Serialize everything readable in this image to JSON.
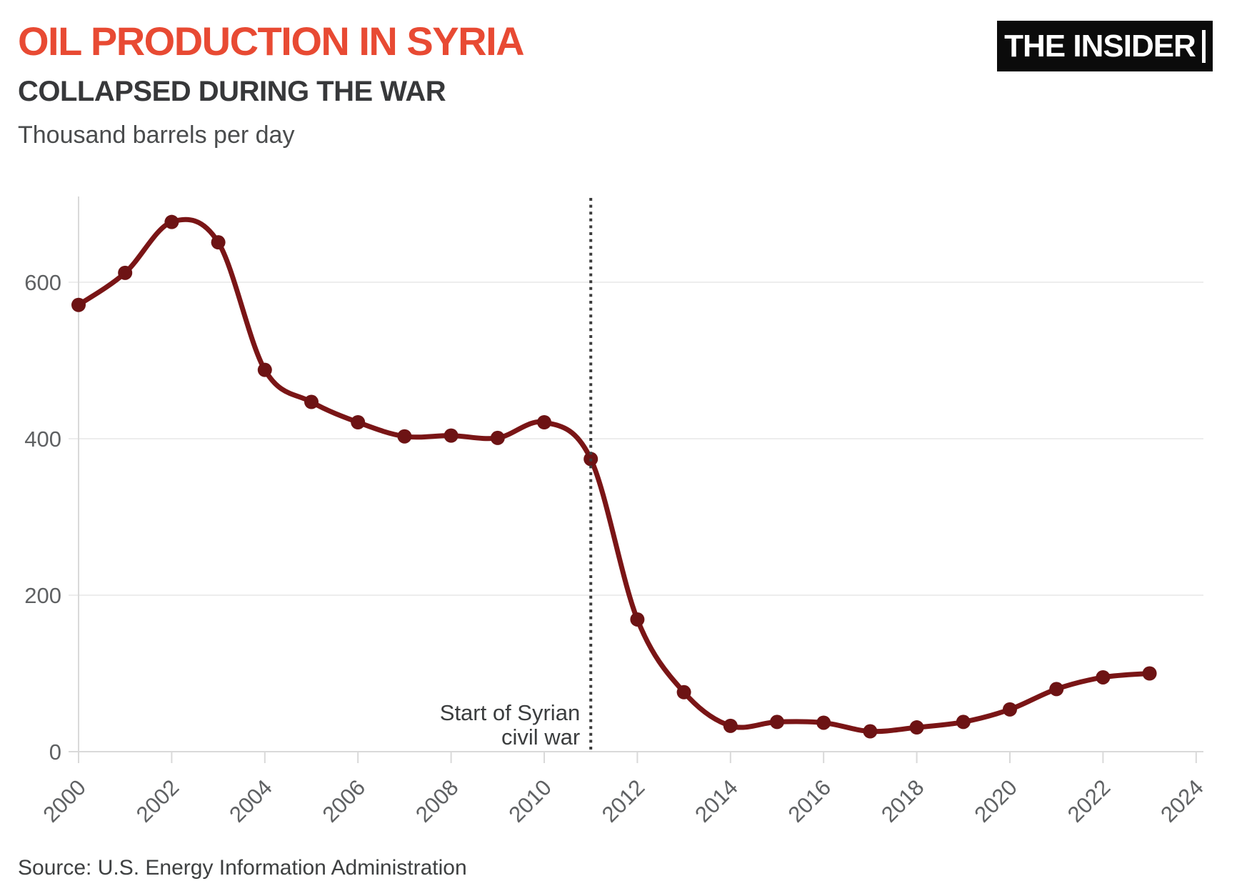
{
  "header": {
    "title": "OIL PRODUCTION IN SYRIA",
    "subtitle": "COLLAPSED DURING THE WAR",
    "units": "Thousand barrels per day"
  },
  "logo": {
    "text": "THE INSIDER"
  },
  "annotation": {
    "line1": "Start of Syrian",
    "line2": "civil war"
  },
  "source": "Source: U.S. Energy Information Administration",
  "colors": {
    "title_red": "#e84a33",
    "line": "#7a1516",
    "point": "#6d1314",
    "gridline": "#ededed",
    "axis": "#d9d9d9",
    "tick_label": "#5f6163",
    "annotation_text": "#3b3d3e",
    "dotted_line": "#3c3c3c",
    "logo_bg": "#0b0b0b",
    "logo_fg": "#ffffff"
  },
  "chart_data": {
    "type": "line",
    "title": "Oil production in Syria collapsed during the war",
    "ylabel": "Thousand barrels per day",
    "series_name": "Syria oil production (thousand barrels per day)",
    "x": [
      2000,
      2001,
      2002,
      2003,
      2004,
      2005,
      2006,
      2007,
      2008,
      2009,
      2010,
      2011,
      2012,
      2013,
      2014,
      2015,
      2016,
      2017,
      2018,
      2019,
      2020,
      2021,
      2022,
      2023
    ],
    "values": [
      571,
      612,
      677,
      651,
      488,
      447,
      421,
      403,
      404,
      401,
      421,
      374,
      169,
      76,
      33,
      38,
      37,
      26,
      31,
      38,
      54,
      80,
      95,
      100
    ],
    "xlim": [
      2000,
      2024
    ],
    "ylim": [
      0,
      700
    ],
    "yticks": [
      0,
      200,
      400,
      600
    ],
    "xticks": [
      2000,
      2002,
      2004,
      2006,
      2008,
      2010,
      2012,
      2014,
      2016,
      2018,
      2020,
      2022,
      2024
    ],
    "grid": "horizontal",
    "legend": "none",
    "vline": {
      "x": 2011,
      "label": "Start of Syrian civil war",
      "style": "dotted"
    }
  }
}
